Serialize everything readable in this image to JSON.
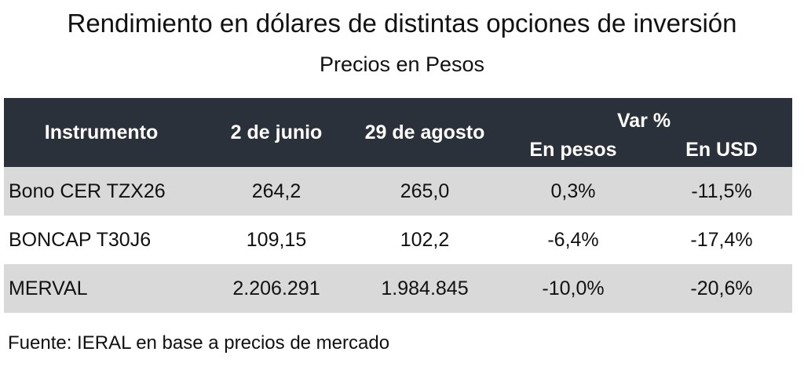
{
  "title": "Rendimiento en dólares de distintas opciones de inversión",
  "subtitle": "Precios en Pesos",
  "table": {
    "headers": {
      "instrument": "Instrumento",
      "date_start": "2 de junio",
      "date_end": "29 de agosto",
      "var_group": "Var %",
      "var_pesos": "En pesos",
      "var_usd": "En USD"
    },
    "rows": [
      {
        "instrument": "Bono CER TZX26",
        "date_start": "264,2",
        "date_end": "265,0",
        "var_pesos": "0,3%",
        "var_usd": "-11,5%"
      },
      {
        "instrument": "BONCAP T30J6",
        "date_start": "109,15",
        "date_end": "102,2",
        "var_pesos": "-6,4%",
        "var_usd": "-17,4%"
      },
      {
        "instrument": "MERVAL",
        "date_start": "2.206.291",
        "date_end": "1.984.845",
        "var_pesos": "-10,0%",
        "var_usd": "-20,6%"
      }
    ]
  },
  "source": "Fuente: IERAL en base a precios de mercado"
}
